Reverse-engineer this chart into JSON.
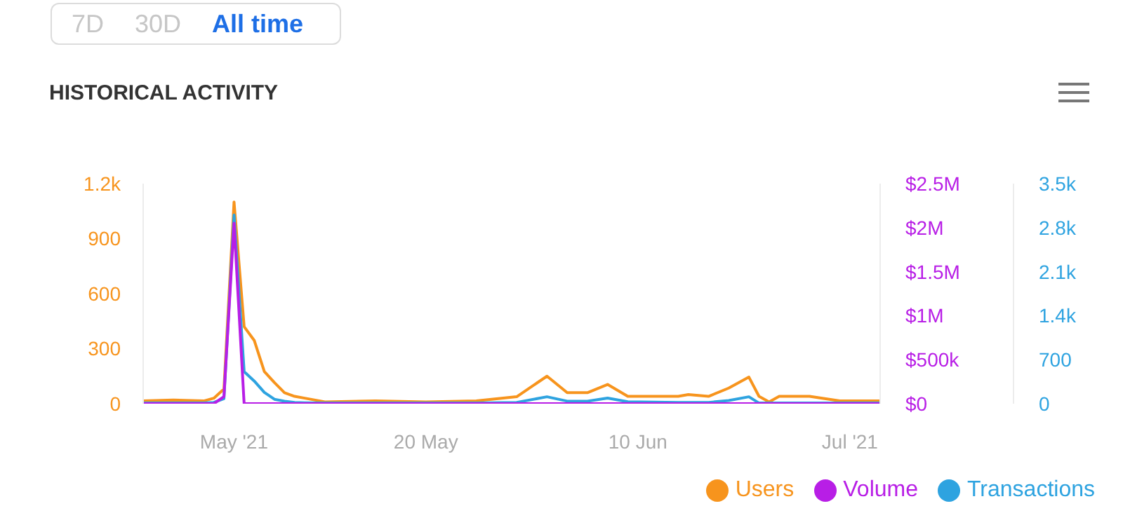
{
  "chart_data": {
    "type": "line",
    "title": "HISTORICAL ACTIVITY",
    "annotations": [
      "7D",
      "30D",
      "All time"
    ],
    "x": [
      "2021-04-22",
      "2021-04-25",
      "2021-04-28",
      "2021-04-29",
      "2021-04-30",
      "2021-05-01",
      "2021-05-02",
      "2021-05-03",
      "2021-05-04",
      "2021-05-05",
      "2021-05-06",
      "2021-05-07",
      "2021-05-08",
      "2021-05-10",
      "2021-05-15",
      "2021-05-20",
      "2021-05-25",
      "2021-05-29",
      "2021-06-01",
      "2021-06-03",
      "2021-06-05",
      "2021-06-07",
      "2021-06-09",
      "2021-06-14",
      "2021-06-15",
      "2021-06-17",
      "2021-06-19",
      "2021-06-21",
      "2021-06-22",
      "2021-06-23",
      "2021-06-24",
      "2021-06-27",
      "2021-06-30",
      "2021-07-04"
    ],
    "series": [
      {
        "name": "Users",
        "color": "#f7941d",
        "axis": "y",
        "values": [
          15,
          20,
          15,
          30,
          80,
          1100,
          420,
          345,
          175,
          115,
          60,
          40,
          30,
          10,
          15,
          10,
          15,
          38,
          150,
          60,
          60,
          105,
          40,
          40,
          50,
          40,
          85,
          145,
          40,
          10,
          40,
          40,
          15,
          15
        ]
      },
      {
        "name": "Volume",
        "color": "#b81ee6",
        "axis": "y2",
        "values": [
          0,
          0,
          0,
          0,
          80000,
          2050000,
          0,
          0,
          0,
          0,
          0,
          0,
          0,
          0,
          0,
          0,
          0,
          0,
          0,
          0,
          0,
          0,
          0,
          0,
          0,
          0,
          0,
          0,
          0,
          0,
          0,
          0,
          0,
          0
        ]
      },
      {
        "name": "Transactions",
        "color": "#2ea3e0",
        "axis": "y3",
        "values": [
          10,
          10,
          10,
          20,
          80,
          3000,
          510,
          360,
          180,
          70,
          40,
          20,
          15,
          10,
          10,
          10,
          10,
          20,
          110,
          40,
          40,
          90,
          30,
          20,
          20,
          20,
          50,
          110,
          10,
          10,
          10,
          10,
          10,
          10
        ]
      }
    ],
    "xlim": [
      "2021-04-22",
      "2021-07-04"
    ],
    "xticks": [
      {
        "value": "2021-05-01",
        "label": "May '21"
      },
      {
        "value": "2021-05-20",
        "label": "20 May"
      },
      {
        "value": "2021-06-10",
        "label": "10 Jun"
      },
      {
        "value": "2021-07-01",
        "label": "Jul '21"
      }
    ],
    "ylim": [
      0,
      1200
    ],
    "yticks": [
      0,
      300,
      600,
      900,
      {
        "value": 1200,
        "label": "1.2k"
      }
    ],
    "y2lim": [
      0,
      2500000
    ],
    "y2ticks": [
      {
        "value": 0,
        "label": "$0"
      },
      {
        "value": 500000,
        "label": "$500k"
      },
      {
        "value": 1000000,
        "label": "$1M"
      },
      {
        "value": 1500000,
        "label": "$1.5M"
      },
      {
        "value": 2000000,
        "label": "$2M"
      },
      {
        "value": 2500000,
        "label": "$2.5M"
      }
    ],
    "y3lim": [
      0,
      3500
    ],
    "y3ticks": [
      0,
      700,
      {
        "value": 1400,
        "label": "1.4k"
      },
      {
        "value": 2100,
        "label": "2.1k"
      },
      {
        "value": 2800,
        "label": "2.8k"
      },
      {
        "value": 3500,
        "label": "3.5k"
      }
    ],
    "legend": "bottom right",
    "grid": false,
    "marker": "none",
    "line_style": "solid"
  }
}
